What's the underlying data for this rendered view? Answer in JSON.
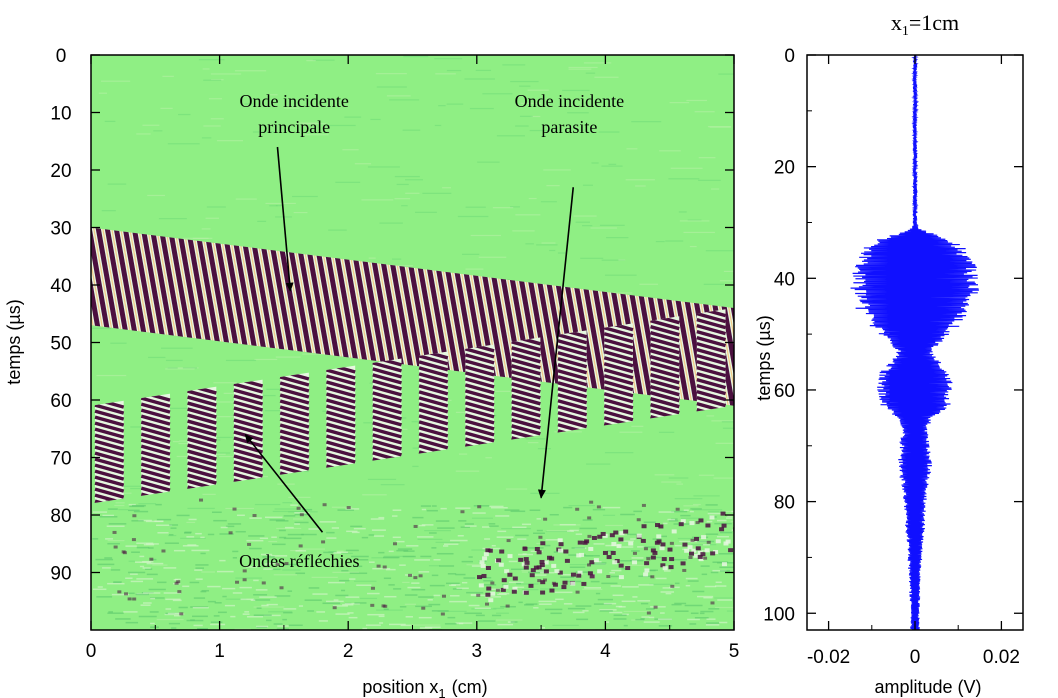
{
  "chart_data": [
    {
      "type": "heatmap",
      "title": "",
      "xlabel": "position x",
      "xlabel_sub": "1",
      "xlabel_unit": "(cm)",
      "ylabel": "temps (µs)",
      "xlim": [
        0,
        5
      ],
      "ylim": [
        0,
        100
      ],
      "y_inverted": true,
      "x_ticks": [
        0,
        1,
        2,
        3,
        4,
        5
      ],
      "y_ticks": [
        0,
        10,
        20,
        30,
        40,
        50,
        60,
        70,
        80,
        90
      ],
      "grid": false,
      "legend": "none",
      "colors": {
        "background": "#8FEF84",
        "dark": "#4B103F",
        "light": "#E6F7E0",
        "accent": "#FF9B30",
        "arrow": "#000000"
      },
      "bands": [
        {
          "name": "main incident wave",
          "x_range": [
            0,
            5
          ],
          "start_top_us": 30,
          "end_top_us": 44,
          "width_us": 17,
          "kind": "stripes"
        },
        {
          "name": "reflected waves",
          "x_range": [
            0,
            5
          ],
          "start_top_us": 61,
          "end_top_us": 44,
          "width_us": 17,
          "kind": "columns",
          "column_spacing_cm": 0.36
        },
        {
          "name": "parasitic incident wave",
          "x_range": [
            3,
            5
          ],
          "start_top_us": 86,
          "end_top_us": 79,
          "width_us": 9,
          "kind": "sparse"
        }
      ],
      "annotations": [
        {
          "lines": [
            "Onde incidente",
            "principale"
          ],
          "text_at": [
            1.58,
            9
          ],
          "arrow_from": [
            1.45,
            16
          ],
          "arrow_to": [
            1.55,
            41
          ]
        },
        {
          "lines": [
            "Onde incidente",
            "parasite"
          ],
          "text_at": [
            3.72,
            9
          ],
          "arrow_from": [
            3.75,
            23
          ],
          "arrow_to": [
            3.5,
            77
          ]
        },
        {
          "lines": [
            "Ondes réfléchies"
          ],
          "text_at": [
            1.62,
            89
          ],
          "arrow_from": [
            1.8,
            83
          ],
          "arrow_to": [
            1.2,
            66
          ]
        }
      ]
    },
    {
      "type": "line",
      "title": "x",
      "title_sub": "1",
      "title_rest": "=1cm",
      "xlabel": "amplitude (V)",
      "ylabel": "temps (µs)",
      "xlim": [
        -0.025,
        0.025
      ],
      "ylim": [
        0,
        103
      ],
      "y_inverted": true,
      "x_ticks": [
        -0.02,
        0,
        0.02
      ],
      "x_tick_labels": [
        "-0.02",
        "0",
        "0.02"
      ],
      "y_ticks": [
        0,
        20,
        40,
        60,
        80,
        100
      ],
      "grid": false,
      "legend": "none",
      "series_color": "#1010FF",
      "envelope": [
        {
          "t": 0,
          "a": 0.0003
        },
        {
          "t": 30,
          "a": 0.0004
        },
        {
          "t": 31,
          "a": 0.0007
        },
        {
          "t": 32,
          "a": 0.004
        },
        {
          "t": 33,
          "a": 0.009
        },
        {
          "t": 35,
          "a": 0.0125
        },
        {
          "t": 38,
          "a": 0.0145
        },
        {
          "t": 42,
          "a": 0.015
        },
        {
          "t": 45,
          "a": 0.014
        },
        {
          "t": 48,
          "a": 0.011
        },
        {
          "t": 51,
          "a": 0.007
        },
        {
          "t": 53,
          "a": 0.004
        },
        {
          "t": 55,
          "a": 0.006
        },
        {
          "t": 57,
          "a": 0.0085
        },
        {
          "t": 60,
          "a": 0.009
        },
        {
          "t": 63,
          "a": 0.008
        },
        {
          "t": 65,
          "a": 0.004
        },
        {
          "t": 67,
          "a": 0.003
        },
        {
          "t": 70,
          "a": 0.0035
        },
        {
          "t": 74,
          "a": 0.004
        },
        {
          "t": 77,
          "a": 0.003
        },
        {
          "t": 82,
          "a": 0.0025
        },
        {
          "t": 88,
          "a": 0.0018
        },
        {
          "t": 95,
          "a": 0.0012
        },
        {
          "t": 103,
          "a": 0.001
        }
      ]
    }
  ]
}
